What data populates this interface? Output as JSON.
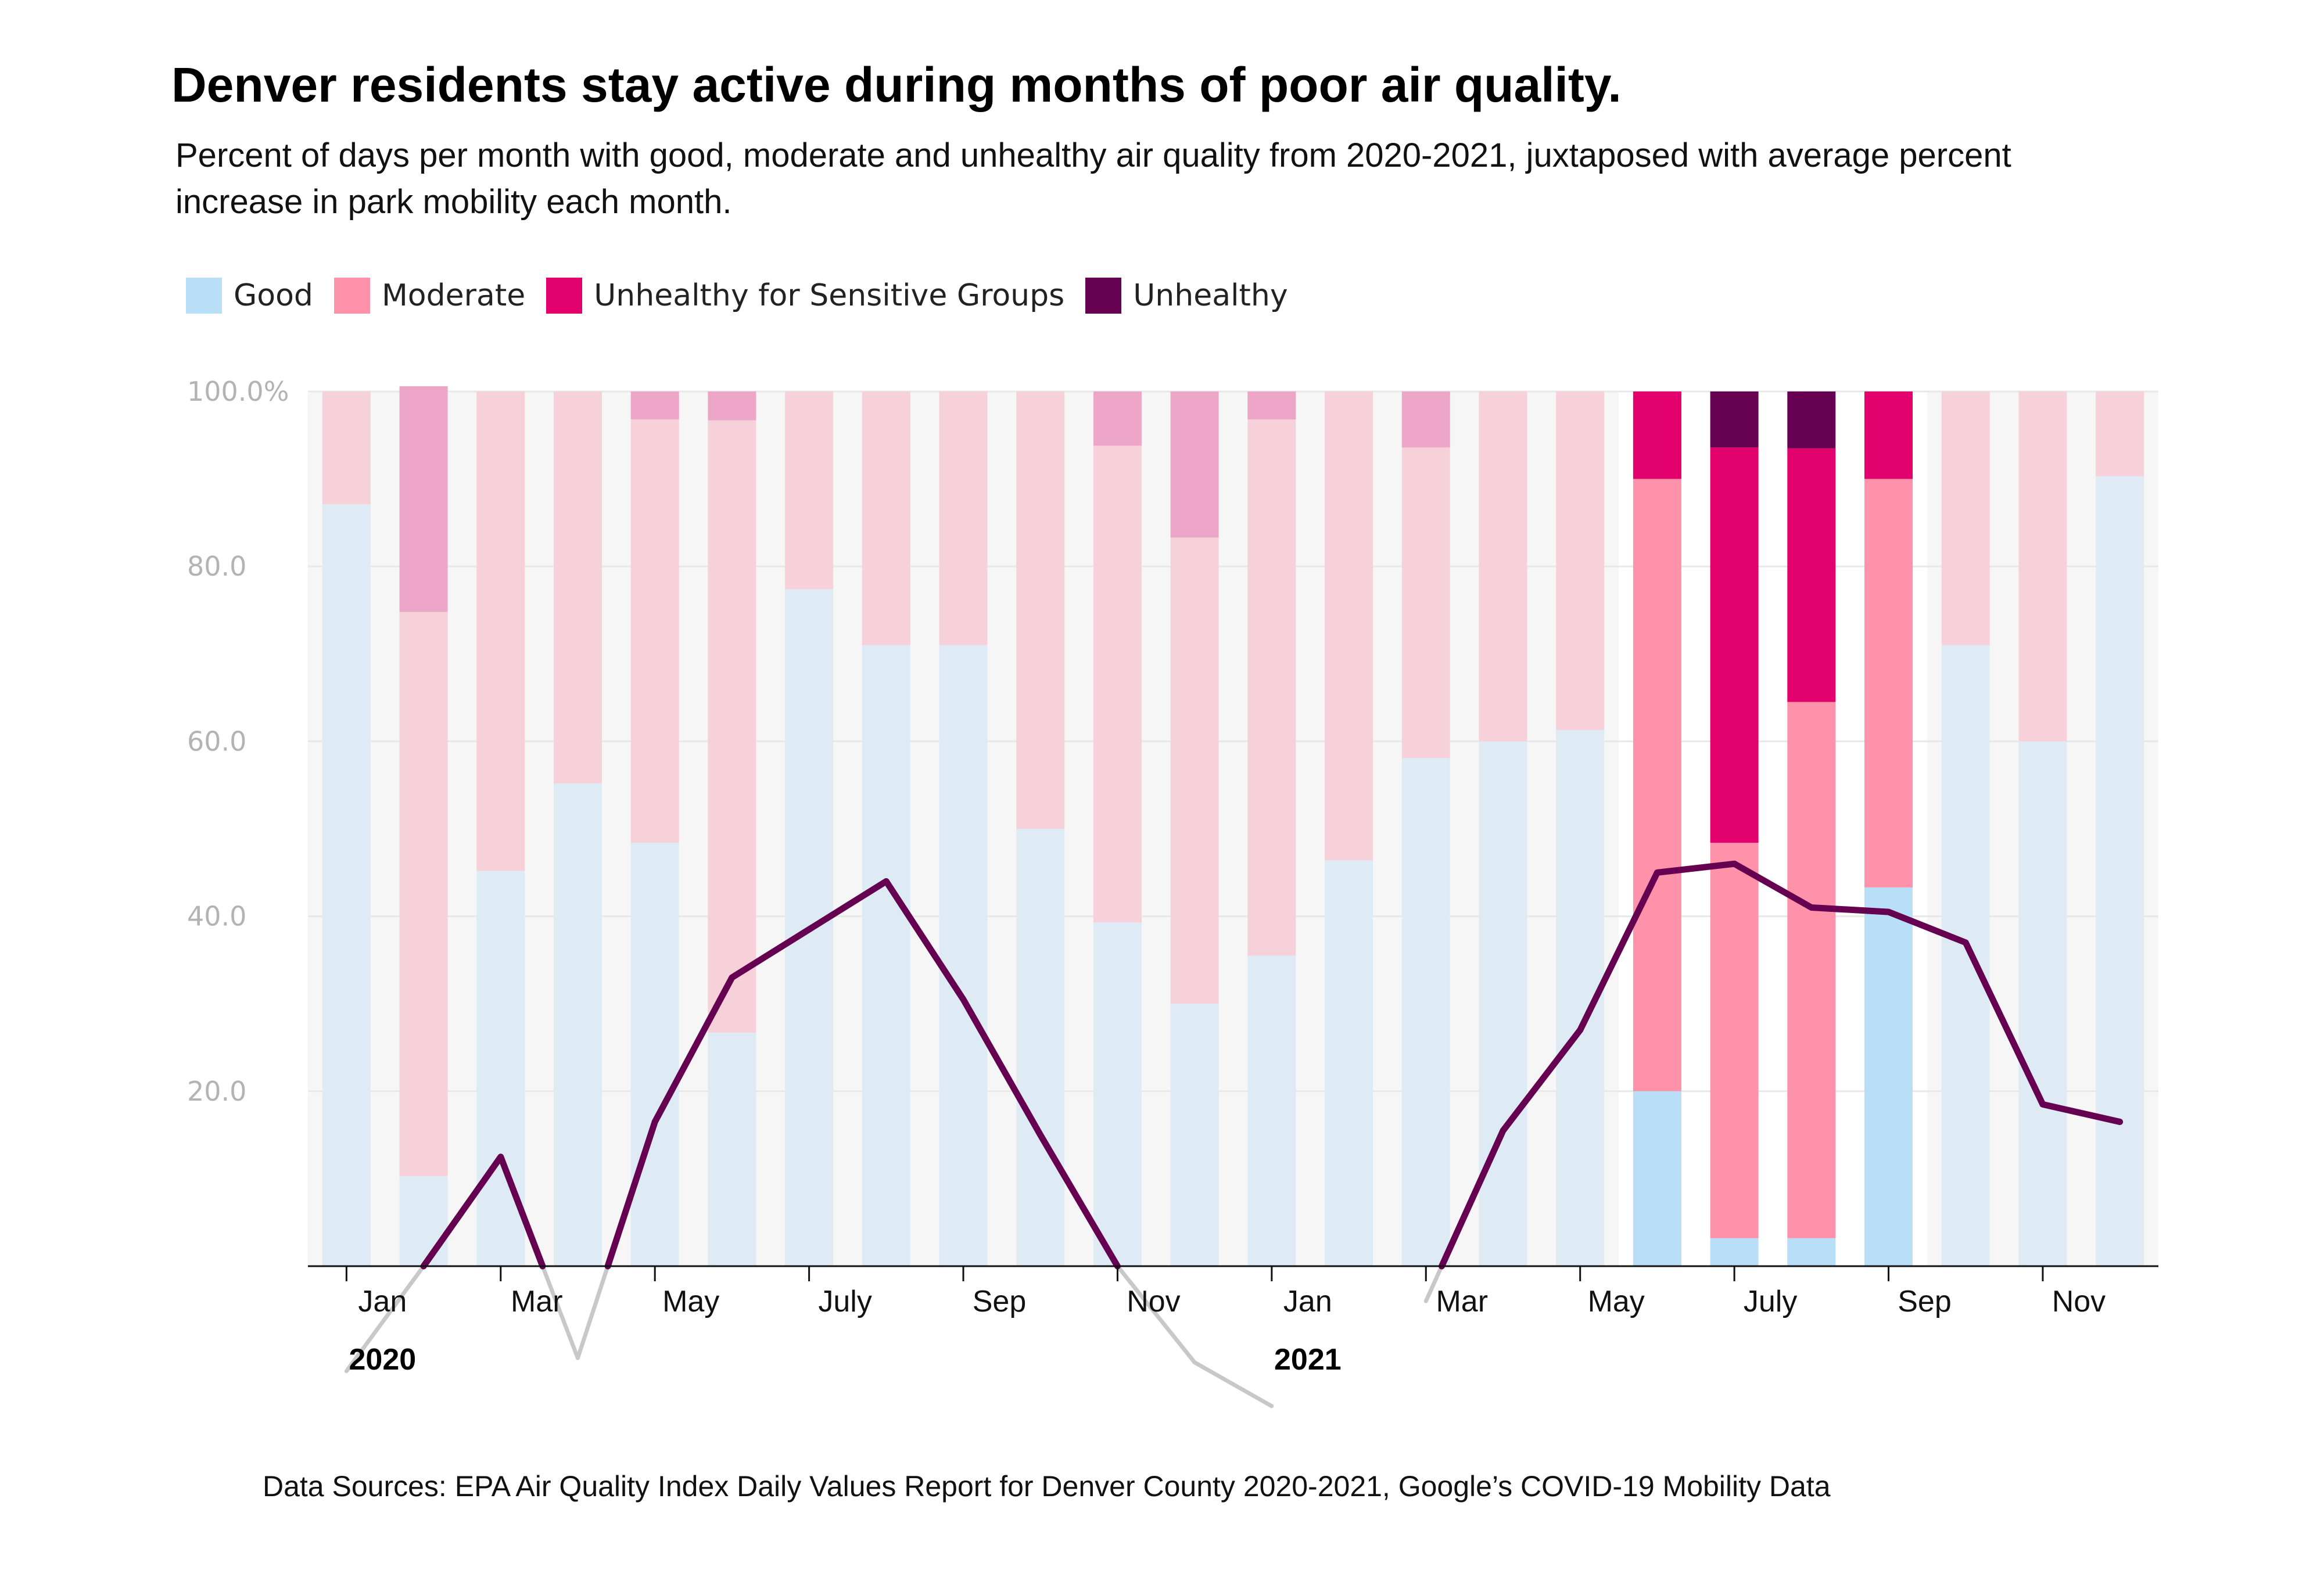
{
  "header": {
    "title": "Denver residents stay active during months of poor air quality.",
    "subtitle": "Percent of days per month with good, moderate and unhealthy air quality from 2020-2021, juxtaposed with average percent increase in park mobility each month."
  },
  "footer": {
    "source": "Data Sources: EPA Air Quality Index Daily Values Report for Denver County 2020-2021, Google’s COVID-19 Mobility Data"
  },
  "chart_data": {
    "type": "bar",
    "stacked": true,
    "legend_placement": "top-left",
    "grid": true,
    "ylim": [
      0,
      100
    ],
    "yticks": [
      20,
      40,
      60,
      80,
      100
    ],
    "ytick_labels": [
      "20.0",
      "40.0",
      "60.0",
      "80.0",
      "100.0%"
    ],
    "xtick_labels": [
      "Jan",
      "Mar",
      "May",
      "July",
      "Sep",
      "Nov",
      "Jan",
      "Mar",
      "May",
      "July",
      "Sep",
      "Nov"
    ],
    "year_labels": [
      "2020",
      "2021"
    ],
    "categories": [
      "Jan 2020",
      "Feb 2020",
      "Mar 2020",
      "Apr 2020",
      "May 2020",
      "Jun 2020",
      "Jul 2020",
      "Aug 2020",
      "Sep 2020",
      "Oct 2020",
      "Nov 2020",
      "Dec 2020",
      "Jan 2021",
      "Feb 2021",
      "Mar 2021",
      "Apr 2021",
      "May 2021",
      "Jun 2021",
      "Jul 2021",
      "Aug 2021",
      "Sep 2021",
      "Oct 2021",
      "Nov 2021",
      "Dec 2021"
    ],
    "highlight_range": [
      17,
      20
    ],
    "series": [
      {
        "name": "Good",
        "color": "#b8def8",
        "faded_color": "#deebf5",
        "values": [
          87.1,
          10.3,
          45.2,
          55.2,
          48.4,
          26.7,
          77.4,
          71.0,
          71.0,
          50.0,
          39.3,
          30.0,
          35.5,
          46.4,
          58.1,
          60.0,
          61.3,
          20.0,
          3.2,
          3.2,
          43.3,
          71.0,
          60.0,
          90.3
        ]
      },
      {
        "name": "Moderate",
        "color": "#ff92ab",
        "faded_color": "#f6d1da",
        "values": [
          12.9,
          64.5,
          54.8,
          44.8,
          48.4,
          70.0,
          22.6,
          29.0,
          29.0,
          50.0,
          54.5,
          53.3,
          61.3,
          53.6,
          35.5,
          40.0,
          38.7,
          70.0,
          45.2,
          61.3,
          46.7,
          29.0,
          40.0,
          9.7
        ]
      },
      {
        "name": "Unhealthy for Sensitive Groups",
        "color": "#e3016e",
        "faded_color": "#eda6c8",
        "values": [
          0,
          25.8,
          0,
          0,
          3.2,
          3.3,
          0,
          0,
          0,
          0,
          6.2,
          16.7,
          3.2,
          0,
          6.4,
          0,
          0,
          10.0,
          45.2,
          29.0,
          10.0,
          0,
          0,
          0
        ]
      },
      {
        "name": "Unhealthy",
        "color": "#660050",
        "faded_color": "#c99fba",
        "values": [
          0,
          0,
          0,
          0,
          0,
          0,
          0,
          0,
          0,
          0,
          0,
          0,
          0,
          0,
          0,
          0,
          0,
          0,
          6.4,
          6.5,
          0,
          0,
          0,
          0
        ]
      }
    ],
    "line_series": {
      "color": "#660050",
      "below_axis_color": "#c8c8c8",
      "values": [
        -12,
        0,
        12.5,
        -10.5,
        16.5,
        33,
        38.5,
        44,
        30.5,
        15,
        0,
        -11,
        -16,
        null,
        -4,
        15.5,
        27,
        45,
        46,
        41,
        40.5,
        37,
        18.5,
        16.5
      ]
    }
  }
}
